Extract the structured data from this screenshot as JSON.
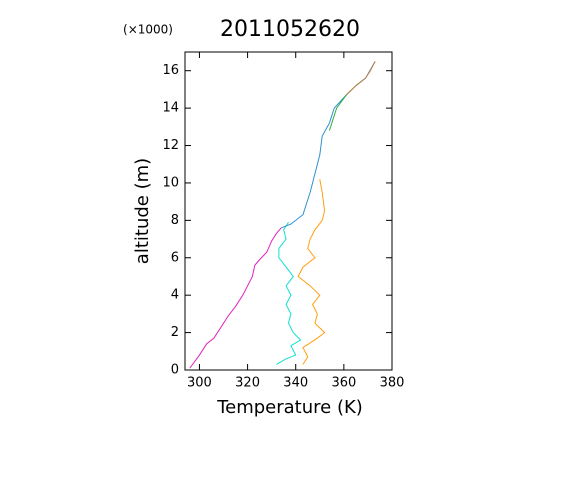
{
  "chart_data": {
    "type": "line",
    "title": "2011052620",
    "y_multiplier": "(×1000)",
    "xlabel": "Temperature (K)",
    "ylabel": "altitude (m)",
    "xlim": [
      294,
      380
    ],
    "ylim": [
      0,
      17
    ],
    "xticks": [
      300,
      320,
      340,
      360,
      380
    ],
    "yticks": [
      0,
      2,
      4,
      6,
      8,
      10,
      12,
      14,
      16
    ],
    "series": [
      {
        "color": "#e020c0",
        "x": [
          296,
          300,
          303,
          306,
          309,
          312,
          315,
          318,
          320,
          322,
          323,
          325,
          328,
          330,
          332,
          334
        ],
        "values": [
          0.1,
          0.8,
          1.4,
          1.7,
          2.3,
          2.9,
          3.4,
          4.0,
          4.5,
          5.0,
          5.6,
          5.9,
          6.3,
          6.9,
          7.3,
          7.6
        ]
      },
      {
        "color": "#10e0d0",
        "x": [
          332,
          336,
          340,
          338,
          342,
          339,
          337,
          338,
          336,
          338,
          336,
          339,
          336,
          333,
          333,
          336,
          335,
          337
        ],
        "values": [
          0.3,
          0.6,
          0.8,
          1.3,
          1.6,
          2.0,
          2.5,
          3.0,
          3.5,
          4.0,
          4.5,
          5.0,
          5.5,
          6.0,
          6.5,
          7.0,
          7.5,
          7.9
        ]
      },
      {
        "color": "#ffa010",
        "x": [
          343,
          345,
          343,
          349,
          352,
          348,
          349,
          347,
          350,
          346,
          341,
          343,
          348,
          345,
          346,
          348,
          351,
          352,
          351,
          350
        ],
        "values": [
          0.3,
          0.7,
          1.2,
          1.7,
          2.0,
          2.5,
          3.0,
          3.5,
          4.0,
          4.5,
          5.0,
          5.5,
          6.0,
          6.5,
          7.0,
          7.5,
          8.0,
          8.5,
          9.5,
          10.2
        ]
      },
      {
        "color": "#3090d0",
        "x": [
          334,
          338,
          343,
          346,
          348,
          350,
          351,
          354,
          356,
          361,
          365,
          369,
          373
        ],
        "values": [
          7.6,
          7.8,
          8.3,
          9.5,
          10.5,
          11.5,
          12.5,
          13.2,
          14.0,
          14.7,
          15.2,
          15.6,
          16.5
        ]
      },
      {
        "color": "#30b040",
        "x": [
          354,
          355,
          357,
          361
        ],
        "values": [
          12.8,
          13.2,
          14.0,
          14.7
        ]
      },
      {
        "color": "#c08040",
        "x": [
          361,
          365,
          369,
          371,
          373
        ],
        "values": [
          14.7,
          15.2,
          15.6,
          16.0,
          16.5
        ]
      }
    ]
  }
}
